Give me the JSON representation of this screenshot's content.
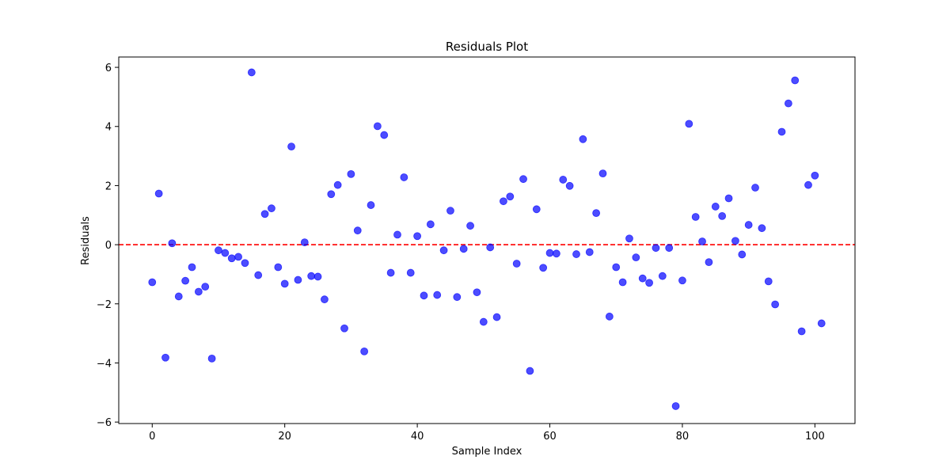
{
  "chart_data": {
    "type": "scatter",
    "title": "Residuals Plot",
    "xlabel": "Sample Index",
    "ylabel": "Residuals",
    "xlim": [
      -5.05,
      106.05
    ],
    "ylim": [
      -6.05,
      6.35
    ],
    "xticks": [
      0,
      20,
      40,
      60,
      80,
      100
    ],
    "yticks": [
      -6,
      -4,
      -2,
      0,
      2,
      4,
      6
    ],
    "grid": false,
    "reference_line": {
      "y": 0,
      "color": "#ff0000",
      "style": "dashed"
    },
    "marker_color": "#0000ff",
    "marker_opacity": 0.7,
    "points": [
      {
        "x": 0,
        "y": -1.27
      },
      {
        "x": 1,
        "y": 1.73
      },
      {
        "x": 2,
        "y": -3.82
      },
      {
        "x": 3,
        "y": 0.05
      },
      {
        "x": 4,
        "y": -1.75
      },
      {
        "x": 5,
        "y": -1.22
      },
      {
        "x": 6,
        "y": -0.76
      },
      {
        "x": 7,
        "y": -1.59
      },
      {
        "x": 8,
        "y": -1.42
      },
      {
        "x": 9,
        "y": -3.85
      },
      {
        "x": 10,
        "y": -0.19
      },
      {
        "x": 11,
        "y": -0.28
      },
      {
        "x": 12,
        "y": -0.46
      },
      {
        "x": 13,
        "y": -0.41
      },
      {
        "x": 14,
        "y": -0.62
      },
      {
        "x": 15,
        "y": 5.83
      },
      {
        "x": 16,
        "y": -1.03
      },
      {
        "x": 17,
        "y": 1.04
      },
      {
        "x": 18,
        "y": 1.23
      },
      {
        "x": 19,
        "y": -0.76
      },
      {
        "x": 20,
        "y": -1.32
      },
      {
        "x": 21,
        "y": 3.32
      },
      {
        "x": 22,
        "y": -1.19
      },
      {
        "x": 23,
        "y": 0.08
      },
      {
        "x": 24,
        "y": -1.06
      },
      {
        "x": 25,
        "y": -1.08
      },
      {
        "x": 26,
        "y": -1.85
      },
      {
        "x": 27,
        "y": 1.71
      },
      {
        "x": 28,
        "y": 2.02
      },
      {
        "x": 29,
        "y": -2.83
      },
      {
        "x": 30,
        "y": 2.39
      },
      {
        "x": 31,
        "y": 0.48
      },
      {
        "x": 32,
        "y": -3.61
      },
      {
        "x": 33,
        "y": 1.34
      },
      {
        "x": 34,
        "y": 4.01
      },
      {
        "x": 35,
        "y": 3.71
      },
      {
        "x": 36,
        "y": -0.95
      },
      {
        "x": 37,
        "y": 0.34
      },
      {
        "x": 38,
        "y": 2.28
      },
      {
        "x": 39,
        "y": -0.95
      },
      {
        "x": 40,
        "y": 0.29
      },
      {
        "x": 41,
        "y": -1.72
      },
      {
        "x": 42,
        "y": 0.69
      },
      {
        "x": 43,
        "y": -1.7
      },
      {
        "x": 44,
        "y": -0.19
      },
      {
        "x": 45,
        "y": 1.15
      },
      {
        "x": 46,
        "y": -1.77
      },
      {
        "x": 47,
        "y": -0.14
      },
      {
        "x": 48,
        "y": 0.64
      },
      {
        "x": 49,
        "y": -1.61
      },
      {
        "x": 50,
        "y": -2.61
      },
      {
        "x": 51,
        "y": -0.09
      },
      {
        "x": 52,
        "y": -2.45
      },
      {
        "x": 53,
        "y": 1.47
      },
      {
        "x": 54,
        "y": 1.63
      },
      {
        "x": 55,
        "y": -0.64
      },
      {
        "x": 56,
        "y": 2.22
      },
      {
        "x": 57,
        "y": -4.27
      },
      {
        "x": 58,
        "y": 1.2
      },
      {
        "x": 59,
        "y": -0.78
      },
      {
        "x": 60,
        "y": -0.28
      },
      {
        "x": 61,
        "y": -0.3
      },
      {
        "x": 62,
        "y": 2.2
      },
      {
        "x": 63,
        "y": 1.99
      },
      {
        "x": 64,
        "y": -0.32
      },
      {
        "x": 65,
        "y": 3.57
      },
      {
        "x": 66,
        "y": -0.25
      },
      {
        "x": 67,
        "y": 1.07
      },
      {
        "x": 68,
        "y": 2.41
      },
      {
        "x": 69,
        "y": -2.43
      },
      {
        "x": 70,
        "y": -0.76
      },
      {
        "x": 71,
        "y": -1.27
      },
      {
        "x": 72,
        "y": 0.21
      },
      {
        "x": 73,
        "y": -0.43
      },
      {
        "x": 74,
        "y": -1.14
      },
      {
        "x": 75,
        "y": -1.29
      },
      {
        "x": 76,
        "y": -0.11
      },
      {
        "x": 77,
        "y": -1.06
      },
      {
        "x": 78,
        "y": -0.11
      },
      {
        "x": 79,
        "y": -5.46
      },
      {
        "x": 80,
        "y": -1.21
      },
      {
        "x": 81,
        "y": 4.09
      },
      {
        "x": 82,
        "y": 0.94
      },
      {
        "x": 83,
        "y": 0.11
      },
      {
        "x": 84,
        "y": -0.59
      },
      {
        "x": 85,
        "y": 1.29
      },
      {
        "x": 86,
        "y": 0.97
      },
      {
        "x": 87,
        "y": 1.57
      },
      {
        "x": 88,
        "y": 0.13
      },
      {
        "x": 89,
        "y": -0.33
      },
      {
        "x": 90,
        "y": 0.67
      },
      {
        "x": 91,
        "y": 1.93
      },
      {
        "x": 92,
        "y": 0.56
      },
      {
        "x": 93,
        "y": -1.24
      },
      {
        "x": 94,
        "y": -2.02
      },
      {
        "x": 95,
        "y": 3.82
      },
      {
        "x": 96,
        "y": 4.78
      },
      {
        "x": 97,
        "y": 5.56
      },
      {
        "x": 98,
        "y": -2.93
      },
      {
        "x": 99,
        "y": 2.02
      },
      {
        "x": 100,
        "y": 2.34
      },
      {
        "x": 101,
        "y": -2.66
      }
    ]
  }
}
